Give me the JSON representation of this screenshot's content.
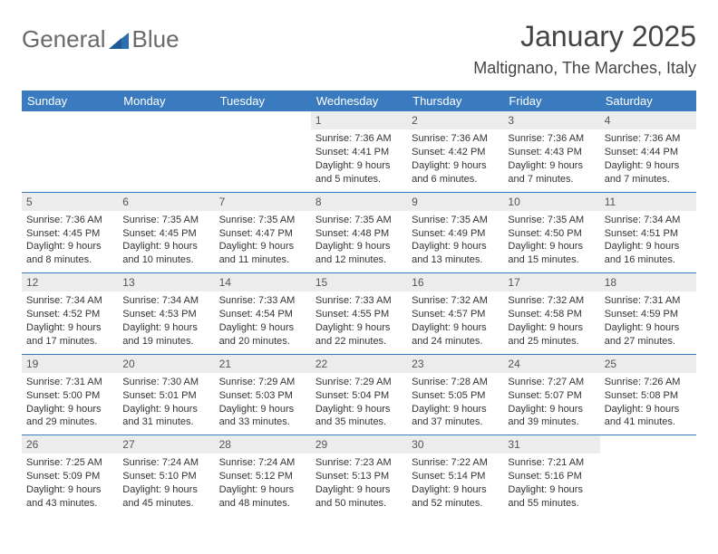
{
  "logo": {
    "text_general": "General",
    "text_blue": "Blue"
  },
  "colors": {
    "header_bg": "#3a7bbf",
    "header_text": "#ffffff",
    "daynum_bg": "#ececec",
    "border": "#3a7bbf",
    "logo_gray": "#6a6a6a",
    "logo_blue": "#2f6fb0",
    "body_text": "#333333"
  },
  "title": "January 2025",
  "location": "Maltignano, The Marches, Italy",
  "weekdays": [
    "Sunday",
    "Monday",
    "Tuesday",
    "Wednesday",
    "Thursday",
    "Friday",
    "Saturday"
  ],
  "weeks": [
    [
      {
        "empty": true
      },
      {
        "empty": true
      },
      {
        "empty": true
      },
      {
        "day": "1",
        "l1": "Sunrise: 7:36 AM",
        "l2": "Sunset: 4:41 PM",
        "l3": "Daylight: 9 hours",
        "l4": "and 5 minutes."
      },
      {
        "day": "2",
        "l1": "Sunrise: 7:36 AM",
        "l2": "Sunset: 4:42 PM",
        "l3": "Daylight: 9 hours",
        "l4": "and 6 minutes."
      },
      {
        "day": "3",
        "l1": "Sunrise: 7:36 AM",
        "l2": "Sunset: 4:43 PM",
        "l3": "Daylight: 9 hours",
        "l4": "and 7 minutes."
      },
      {
        "day": "4",
        "l1": "Sunrise: 7:36 AM",
        "l2": "Sunset: 4:44 PM",
        "l3": "Daylight: 9 hours",
        "l4": "and 7 minutes."
      }
    ],
    [
      {
        "day": "5",
        "l1": "Sunrise: 7:36 AM",
        "l2": "Sunset: 4:45 PM",
        "l3": "Daylight: 9 hours",
        "l4": "and 8 minutes."
      },
      {
        "day": "6",
        "l1": "Sunrise: 7:35 AM",
        "l2": "Sunset: 4:45 PM",
        "l3": "Daylight: 9 hours",
        "l4": "and 10 minutes."
      },
      {
        "day": "7",
        "l1": "Sunrise: 7:35 AM",
        "l2": "Sunset: 4:47 PM",
        "l3": "Daylight: 9 hours",
        "l4": "and 11 minutes."
      },
      {
        "day": "8",
        "l1": "Sunrise: 7:35 AM",
        "l2": "Sunset: 4:48 PM",
        "l3": "Daylight: 9 hours",
        "l4": "and 12 minutes."
      },
      {
        "day": "9",
        "l1": "Sunrise: 7:35 AM",
        "l2": "Sunset: 4:49 PM",
        "l3": "Daylight: 9 hours",
        "l4": "and 13 minutes."
      },
      {
        "day": "10",
        "l1": "Sunrise: 7:35 AM",
        "l2": "Sunset: 4:50 PM",
        "l3": "Daylight: 9 hours",
        "l4": "and 15 minutes."
      },
      {
        "day": "11",
        "l1": "Sunrise: 7:34 AM",
        "l2": "Sunset: 4:51 PM",
        "l3": "Daylight: 9 hours",
        "l4": "and 16 minutes."
      }
    ],
    [
      {
        "day": "12",
        "l1": "Sunrise: 7:34 AM",
        "l2": "Sunset: 4:52 PM",
        "l3": "Daylight: 9 hours",
        "l4": "and 17 minutes."
      },
      {
        "day": "13",
        "l1": "Sunrise: 7:34 AM",
        "l2": "Sunset: 4:53 PM",
        "l3": "Daylight: 9 hours",
        "l4": "and 19 minutes."
      },
      {
        "day": "14",
        "l1": "Sunrise: 7:33 AM",
        "l2": "Sunset: 4:54 PM",
        "l3": "Daylight: 9 hours",
        "l4": "and 20 minutes."
      },
      {
        "day": "15",
        "l1": "Sunrise: 7:33 AM",
        "l2": "Sunset: 4:55 PM",
        "l3": "Daylight: 9 hours",
        "l4": "and 22 minutes."
      },
      {
        "day": "16",
        "l1": "Sunrise: 7:32 AM",
        "l2": "Sunset: 4:57 PM",
        "l3": "Daylight: 9 hours",
        "l4": "and 24 minutes."
      },
      {
        "day": "17",
        "l1": "Sunrise: 7:32 AM",
        "l2": "Sunset: 4:58 PM",
        "l3": "Daylight: 9 hours",
        "l4": "and 25 minutes."
      },
      {
        "day": "18",
        "l1": "Sunrise: 7:31 AM",
        "l2": "Sunset: 4:59 PM",
        "l3": "Daylight: 9 hours",
        "l4": "and 27 minutes."
      }
    ],
    [
      {
        "day": "19",
        "l1": "Sunrise: 7:31 AM",
        "l2": "Sunset: 5:00 PM",
        "l3": "Daylight: 9 hours",
        "l4": "and 29 minutes."
      },
      {
        "day": "20",
        "l1": "Sunrise: 7:30 AM",
        "l2": "Sunset: 5:01 PM",
        "l3": "Daylight: 9 hours",
        "l4": "and 31 minutes."
      },
      {
        "day": "21",
        "l1": "Sunrise: 7:29 AM",
        "l2": "Sunset: 5:03 PM",
        "l3": "Daylight: 9 hours",
        "l4": "and 33 minutes."
      },
      {
        "day": "22",
        "l1": "Sunrise: 7:29 AM",
        "l2": "Sunset: 5:04 PM",
        "l3": "Daylight: 9 hours",
        "l4": "and 35 minutes."
      },
      {
        "day": "23",
        "l1": "Sunrise: 7:28 AM",
        "l2": "Sunset: 5:05 PM",
        "l3": "Daylight: 9 hours",
        "l4": "and 37 minutes."
      },
      {
        "day": "24",
        "l1": "Sunrise: 7:27 AM",
        "l2": "Sunset: 5:07 PM",
        "l3": "Daylight: 9 hours",
        "l4": "and 39 minutes."
      },
      {
        "day": "25",
        "l1": "Sunrise: 7:26 AM",
        "l2": "Sunset: 5:08 PM",
        "l3": "Daylight: 9 hours",
        "l4": "and 41 minutes."
      }
    ],
    [
      {
        "day": "26",
        "l1": "Sunrise: 7:25 AM",
        "l2": "Sunset: 5:09 PM",
        "l3": "Daylight: 9 hours",
        "l4": "and 43 minutes."
      },
      {
        "day": "27",
        "l1": "Sunrise: 7:24 AM",
        "l2": "Sunset: 5:10 PM",
        "l3": "Daylight: 9 hours",
        "l4": "and 45 minutes."
      },
      {
        "day": "28",
        "l1": "Sunrise: 7:24 AM",
        "l2": "Sunset: 5:12 PM",
        "l3": "Daylight: 9 hours",
        "l4": "and 48 minutes."
      },
      {
        "day": "29",
        "l1": "Sunrise: 7:23 AM",
        "l2": "Sunset: 5:13 PM",
        "l3": "Daylight: 9 hours",
        "l4": "and 50 minutes."
      },
      {
        "day": "30",
        "l1": "Sunrise: 7:22 AM",
        "l2": "Sunset: 5:14 PM",
        "l3": "Daylight: 9 hours",
        "l4": "and 52 minutes."
      },
      {
        "day": "31",
        "l1": "Sunrise: 7:21 AM",
        "l2": "Sunset: 5:16 PM",
        "l3": "Daylight: 9 hours",
        "l4": "and 55 minutes."
      },
      {
        "empty": true
      }
    ]
  ]
}
